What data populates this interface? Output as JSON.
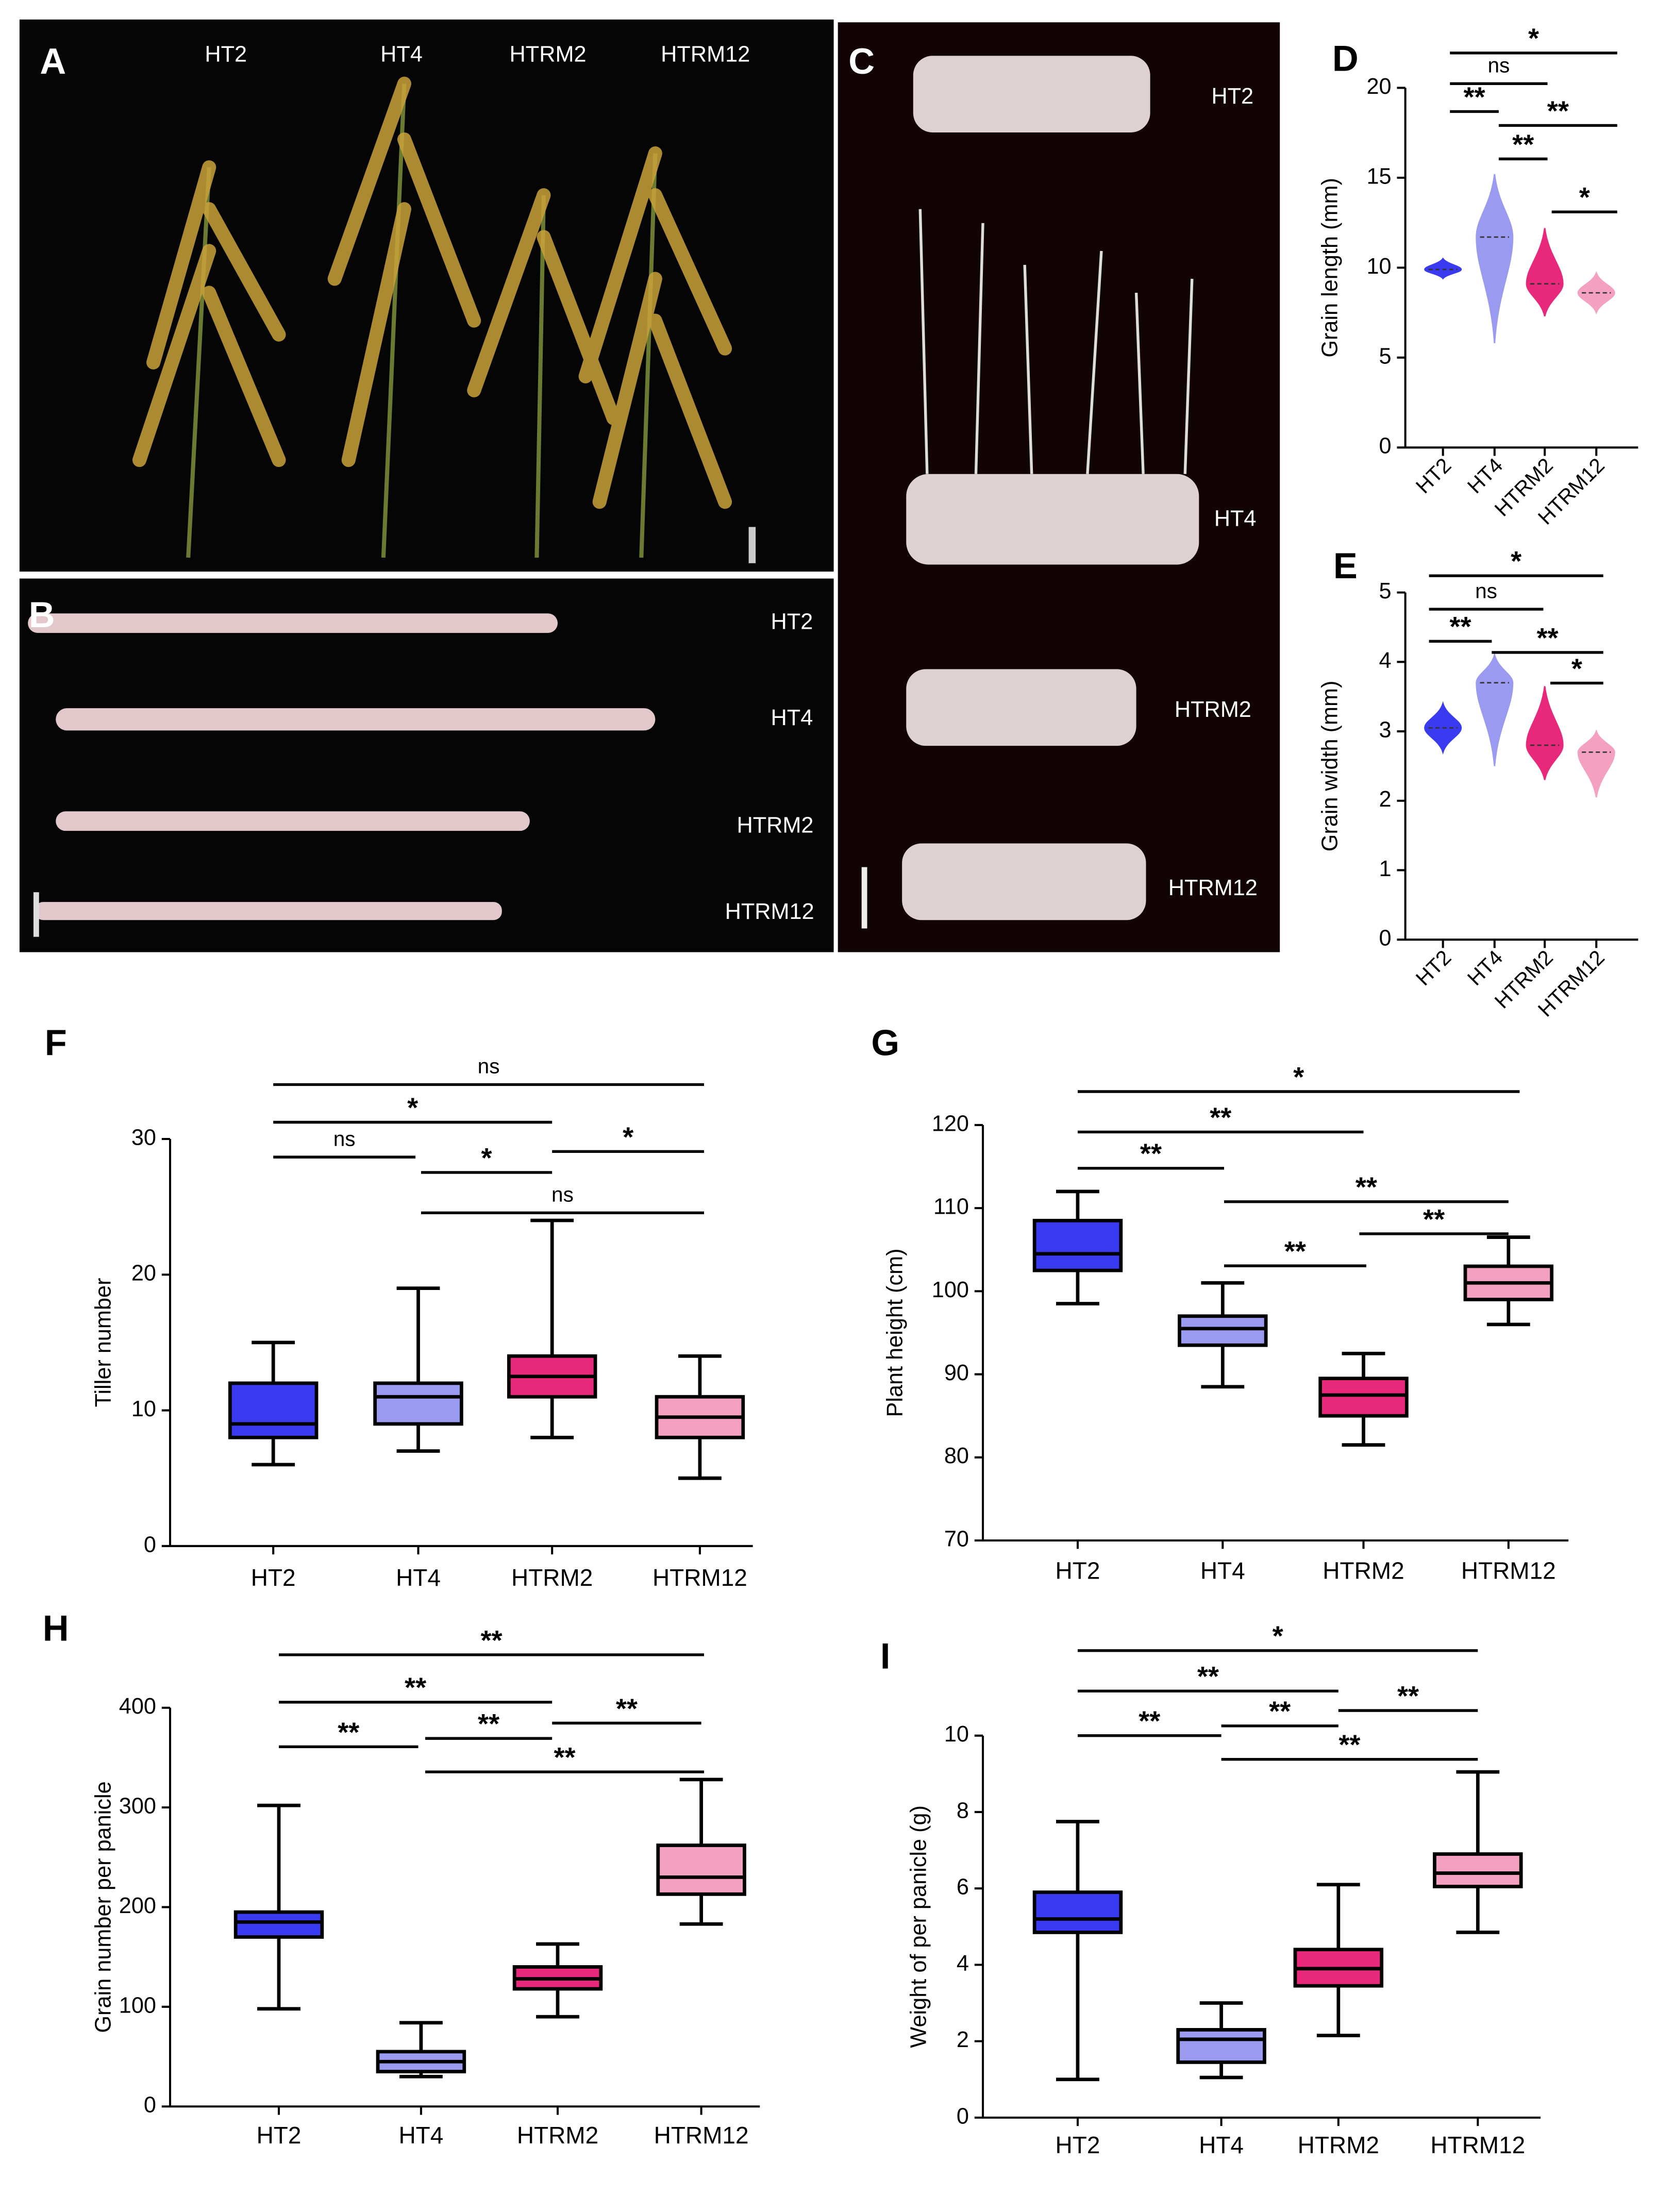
{
  "photos": [
    {
      "label": "A",
      "captions": [
        "HT2",
        "HT4",
        "HTRM2",
        "HTRM12"
      ]
    },
    {
      "label": "B",
      "captions": [
        "HT2",
        "HT4",
        "HTRM2",
        "HTRM12"
      ]
    },
    {
      "label": "C",
      "captions": [
        "HT2",
        "HT4",
        "HTRM2",
        "HTRM12"
      ]
    }
  ],
  "chart_data": [
    {
      "type": "violin",
      "label": "D",
      "ylabel": "Grain length (mm)",
      "categories": [
        "HT2",
        "HT4",
        "HTRM2",
        "HTRM12"
      ],
      "colors": [
        "#3a3af0",
        "#9a9af0",
        "#e8287a",
        "#f4a0c0"
      ],
      "ylim": [
        0,
        20
      ],
      "yticks": [
        0,
        5,
        10,
        15,
        20
      ],
      "violins": [
        {
          "min": 9.4,
          "median": 9.9,
          "max": 10.5
        },
        {
          "min": 5.8,
          "median": 11.7,
          "max": 15.2
        },
        {
          "min": 7.3,
          "median": 9.1,
          "max": 12.2
        },
        {
          "min": 7.5,
          "median": 8.6,
          "max": 9.7
        }
      ],
      "annotations": [
        "*",
        "ns",
        "**",
        "**",
        "**",
        "*"
      ]
    },
    {
      "type": "violin",
      "label": "E",
      "ylabel": "Grain width (mm)",
      "categories": [
        "HT2",
        "HT4",
        "HTRM2",
        "HTRM12"
      ],
      "colors": [
        "#3a3af0",
        "#9a9af0",
        "#e8287a",
        "#f4a0c0"
      ],
      "ylim": [
        0,
        5
      ],
      "yticks": [
        0,
        1,
        2,
        3,
        4,
        5
      ],
      "violins": [
        {
          "min": 2.7,
          "median": 3.05,
          "max": 3.4
        },
        {
          "min": 2.5,
          "median": 3.7,
          "max": 4.1
        },
        {
          "min": 2.3,
          "median": 2.8,
          "max": 3.65
        },
        {
          "min": 2.05,
          "median": 2.7,
          "max": 3.0
        }
      ],
      "annotations": [
        "*",
        "ns",
        "**",
        "**",
        "*"
      ]
    },
    {
      "type": "box",
      "label": "F",
      "ylabel": "Tiller number",
      "categories": [
        "HT2",
        "HT4",
        "HTRM2",
        "HTRM12"
      ],
      "colors": [
        "#3a3af0",
        "#9a9af0",
        "#e8287a",
        "#f4a0c0"
      ],
      "ylim": [
        0,
        30
      ],
      "yticks": [
        0,
        10,
        20,
        30
      ],
      "boxes": [
        {
          "min": 6,
          "q1": 8,
          "median": 9,
          "q3": 12,
          "max": 15
        },
        {
          "min": 7,
          "q1": 9,
          "median": 11,
          "q3": 12,
          "max": 19
        },
        {
          "min": 8,
          "q1": 11,
          "median": 12.5,
          "q3": 14,
          "max": 24
        },
        {
          "min": 5,
          "q1": 8,
          "median": 9.5,
          "q3": 11,
          "max": 14
        }
      ],
      "annotations": [
        "ns",
        "*",
        "ns",
        "*",
        "*",
        "ns"
      ]
    },
    {
      "type": "box",
      "label": "G",
      "ylabel": "Plant  height (cm)",
      "categories": [
        "HT2",
        "HT4",
        "HTRM2",
        "HTRM12"
      ],
      "colors": [
        "#3a3af0",
        "#9a9af0",
        "#e8287a",
        "#f4a0c0"
      ],
      "ylim": [
        70,
        120
      ],
      "yticks": [
        70,
        80,
        90,
        100,
        110,
        120
      ],
      "boxes": [
        {
          "min": 98.5,
          "q1": 102.5,
          "median": 104.5,
          "q3": 108.5,
          "max": 112
        },
        {
          "min": 88.5,
          "q1": 93.5,
          "median": 95.5,
          "q3": 97,
          "max": 101
        },
        {
          "min": 81.5,
          "q1": 85,
          "median": 87.5,
          "q3": 89.5,
          "max": 92.5
        },
        {
          "min": 96,
          "q1": 99,
          "median": 101,
          "q3": 103,
          "max": 106.5
        }
      ],
      "annotations": [
        "*",
        "**",
        "**",
        "**",
        "**",
        "**"
      ]
    },
    {
      "type": "box",
      "label": "H",
      "ylabel": "Grain number per panicle",
      "categories": [
        "HT2",
        "HT4",
        "HTRM2",
        "HTRM12"
      ],
      "colors": [
        "#3a3af0",
        "#9a9af0",
        "#e8287a",
        "#f4a0c0"
      ],
      "ylim": [
        0,
        400
      ],
      "yticks": [
        0,
        100,
        200,
        300,
        400
      ],
      "boxes": [
        {
          "min": 98,
          "q1": 170,
          "median": 185,
          "q3": 195,
          "max": 302
        },
        {
          "min": 30,
          "q1": 35,
          "median": 45,
          "q3": 55,
          "max": 84
        },
        {
          "min": 90,
          "q1": 118,
          "median": 128,
          "q3": 140,
          "max": 163
        },
        {
          "min": 183,
          "q1": 213,
          "median": 230,
          "q3": 262,
          "max": 328
        }
      ],
      "annotations": [
        "**",
        "**",
        "**",
        "**",
        "**",
        "**"
      ]
    },
    {
      "type": "box",
      "label": "I",
      "ylabel": "Weight of  per panicle (g)",
      "categories": [
        "HT2",
        "HT4",
        "HTRM2",
        "HTRM12"
      ],
      "colors": [
        "#3a3af0",
        "#9a9af0",
        "#e8287a",
        "#f4a0c0"
      ],
      "ylim": [
        0,
        10
      ],
      "yticks": [
        0,
        2,
        4,
        6,
        8,
        10
      ],
      "boxes": [
        {
          "min": 1,
          "q1": 4.85,
          "median": 5.2,
          "q3": 5.9,
          "max": 7.75
        },
        {
          "min": 1.05,
          "q1": 1.45,
          "median": 2.05,
          "q3": 2.3,
          "max": 3
        },
        {
          "min": 2.15,
          "q1": 3.45,
          "median": 3.9,
          "q3": 4.4,
          "max": 6.1
        },
        {
          "min": 4.85,
          "q1": 6.05,
          "median": 6.4,
          "q3": 6.9,
          "max": 9.05
        }
      ],
      "annotations": [
        "*",
        "**",
        "**",
        "**",
        "**",
        "**"
      ]
    }
  ]
}
